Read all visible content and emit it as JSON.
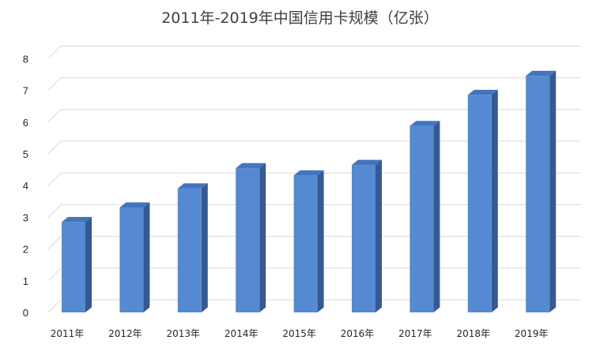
{
  "chart_data": {
    "type": "bar",
    "title": "2011年-2019年中国信用卡规模（亿张）",
    "xlabel": "",
    "ylabel": "",
    "categories": [
      "2011年",
      "2012年",
      "2013年",
      "2014年",
      "2015年",
      "2016年",
      "2017年",
      "2018年",
      "2019年"
    ],
    "values": [
      2.85,
      3.31,
      3.91,
      4.55,
      4.32,
      4.65,
      5.88,
      6.86,
      7.46
    ],
    "ylim": [
      0,
      8
    ],
    "yticks": [
      "0",
      "1",
      "2",
      "3",
      "4",
      "5",
      "6",
      "7",
      "8"
    ],
    "grid": true,
    "style": "3d-column",
    "colors": {
      "front": "#5589D1",
      "side": "#36598F",
      "top": "#4374BE",
      "grid": "#D9D9D9"
    }
  }
}
